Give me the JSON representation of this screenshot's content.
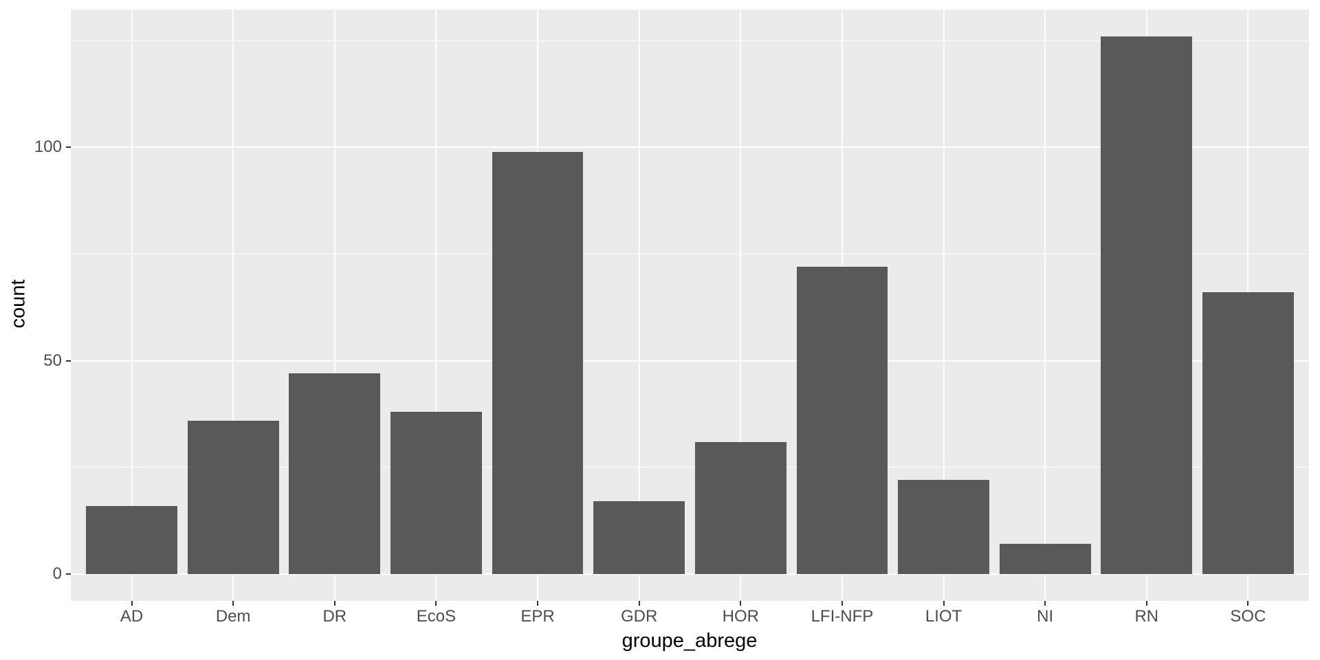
{
  "chart_data": {
    "type": "bar",
    "title": "",
    "xlabel": "groupe_abrege",
    "ylabel": "count",
    "categories": [
      "AD",
      "Dem",
      "DR",
      "EcoS",
      "EPR",
      "GDR",
      "HOR",
      "LFI-NFP",
      "LIOT",
      "NI",
      "RN",
      "SOC"
    ],
    "values": [
      16,
      36,
      47,
      38,
      99,
      17,
      31,
      72,
      22,
      7,
      126,
      66
    ],
    "series": [
      {
        "name": "count",
        "values": [
          16,
          36,
          47,
          38,
          99,
          17,
          31,
          72,
          22,
          7,
          126,
          66
        ]
      }
    ],
    "yticks": [
      0,
      50,
      100
    ],
    "yticks_minor": [
      25,
      75,
      125
    ],
    "ylim": [
      -6.3,
      132.3
    ],
    "grid": true,
    "legend": false,
    "theme": "ggplot2-grey",
    "colors": {
      "bar_fill": "#595959",
      "panel_background": "#EBEBEB",
      "gridline": "#FFFFFF",
      "tick_mark": "#333333",
      "tick_label_text": "#4D4D4D",
      "axis_title_text": "#000000",
      "plot_background": "#FFFFFF"
    }
  }
}
